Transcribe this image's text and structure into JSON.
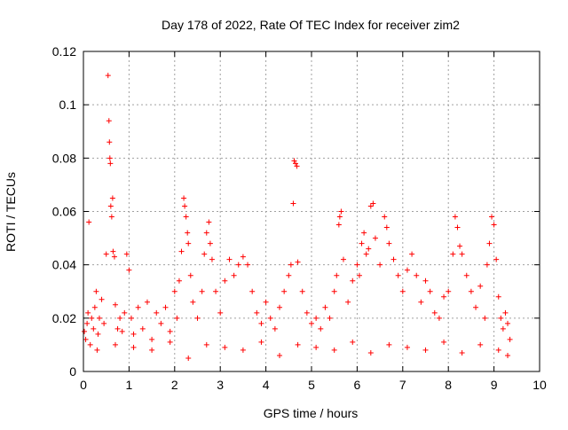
{
  "chart_data": {
    "type": "scatter",
    "title": "Day 178 of 2022, Rate Of TEC Index for receiver zim2",
    "xlabel": "GPS time / hours",
    "ylabel": "ROTI / TECUs",
    "xlim": [
      0,
      10
    ],
    "ylim": [
      0,
      0.12
    ],
    "x_ticks": [
      "0",
      "1",
      "2",
      "3",
      "4",
      "5",
      "6",
      "7",
      "8",
      "9",
      "10"
    ],
    "y_ticks": [
      "0",
      "0.02",
      "0.04",
      "0.06",
      "0.08",
      "0.1",
      "0.12"
    ],
    "grid": true,
    "legend": "none",
    "marker": "plus",
    "series": [
      {
        "color": "#ff0000",
        "points": [
          [
            0.02,
            0.015
          ],
          [
            0.05,
            0.012
          ],
          [
            0.08,
            0.018
          ],
          [
            0.1,
            0.022
          ],
          [
            0.12,
            0.056
          ],
          [
            0.15,
            0.01
          ],
          [
            0.18,
            0.02
          ],
          [
            0.22,
            0.016
          ],
          [
            0.25,
            0.024
          ],
          [
            0.28,
            0.03
          ],
          [
            0.32,
            0.014
          ],
          [
            0.35,
            0.02
          ],
          [
            0.4,
            0.027
          ],
          [
            0.45,
            0.018
          ],
          [
            0.5,
            0.044
          ],
          [
            0.54,
            0.111
          ],
          [
            0.56,
            0.094
          ],
          [
            0.57,
            0.086
          ],
          [
            0.58,
            0.08
          ],
          [
            0.59,
            0.078
          ],
          [
            0.6,
            0.062
          ],
          [
            0.62,
            0.058
          ],
          [
            0.64,
            0.065
          ],
          [
            0.65,
            0.045
          ],
          [
            0.68,
            0.043
          ],
          [
            0.7,
            0.025
          ],
          [
            0.75,
            0.016
          ],
          [
            0.8,
            0.02
          ],
          [
            0.85,
            0.015
          ],
          [
            0.9,
            0.022
          ],
          [
            0.95,
            0.044
          ],
          [
            1.0,
            0.038
          ],
          [
            1.05,
            0.02
          ],
          [
            1.1,
            0.014
          ],
          [
            1.2,
            0.024
          ],
          [
            1.3,
            0.016
          ],
          [
            1.4,
            0.026
          ],
          [
            1.5,
            0.012
          ],
          [
            1.6,
            0.022
          ],
          [
            1.7,
            0.018
          ],
          [
            1.8,
            0.024
          ],
          [
            1.9,
            0.015
          ],
          [
            2.0,
            0.03
          ],
          [
            2.05,
            0.02
          ],
          [
            2.1,
            0.034
          ],
          [
            2.15,
            0.045
          ],
          [
            2.2,
            0.065
          ],
          [
            2.22,
            0.062
          ],
          [
            2.25,
            0.058
          ],
          [
            2.28,
            0.052
          ],
          [
            2.3,
            0.048
          ],
          [
            2.35,
            0.036
          ],
          [
            2.4,
            0.026
          ],
          [
            2.5,
            0.02
          ],
          [
            2.6,
            0.03
          ],
          [
            2.65,
            0.044
          ],
          [
            2.7,
            0.052
          ],
          [
            2.75,
            0.056
          ],
          [
            2.78,
            0.048
          ],
          [
            2.82,
            0.042
          ],
          [
            2.9,
            0.03
          ],
          [
            3.0,
            0.022
          ],
          [
            3.1,
            0.034
          ],
          [
            3.2,
            0.042
          ],
          [
            3.3,
            0.036
          ],
          [
            3.4,
            0.04
          ],
          [
            3.5,
            0.043
          ],
          [
            3.6,
            0.04
          ],
          [
            3.7,
            0.03
          ],
          [
            3.8,
            0.022
          ],
          [
            3.9,
            0.018
          ],
          [
            4.0,
            0.026
          ],
          [
            4.1,
            0.02
          ],
          [
            4.2,
            0.016
          ],
          [
            4.3,
            0.024
          ],
          [
            4.4,
            0.03
          ],
          [
            4.5,
            0.036
          ],
          [
            4.55,
            0.04
          ],
          [
            4.6,
            0.063
          ],
          [
            4.62,
            0.079
          ],
          [
            4.65,
            0.078
          ],
          [
            4.68,
            0.077
          ],
          [
            4.7,
            0.041
          ],
          [
            4.8,
            0.03
          ],
          [
            4.9,
            0.022
          ],
          [
            5.0,
            0.018
          ],
          [
            5.1,
            0.02
          ],
          [
            5.2,
            0.016
          ],
          [
            5.3,
            0.024
          ],
          [
            5.4,
            0.02
          ],
          [
            5.5,
            0.03
          ],
          [
            5.55,
            0.036
          ],
          [
            5.6,
            0.055
          ],
          [
            5.62,
            0.058
          ],
          [
            5.65,
            0.06
          ],
          [
            5.7,
            0.042
          ],
          [
            5.8,
            0.026
          ],
          [
            5.9,
            0.034
          ],
          [
            6.0,
            0.04
          ],
          [
            6.05,
            0.036
          ],
          [
            6.1,
            0.048
          ],
          [
            6.15,
            0.052
          ],
          [
            6.2,
            0.044
          ],
          [
            6.25,
            0.046
          ],
          [
            6.3,
            0.062
          ],
          [
            6.35,
            0.063
          ],
          [
            6.4,
            0.05
          ],
          [
            6.5,
            0.04
          ],
          [
            6.6,
            0.058
          ],
          [
            6.65,
            0.054
          ],
          [
            6.7,
            0.048
          ],
          [
            6.8,
            0.042
          ],
          [
            6.9,
            0.036
          ],
          [
            7.0,
            0.03
          ],
          [
            7.1,
            0.038
          ],
          [
            7.2,
            0.044
          ],
          [
            7.3,
            0.036
          ],
          [
            7.4,
            0.026
          ],
          [
            7.5,
            0.034
          ],
          [
            7.6,
            0.03
          ],
          [
            7.7,
            0.022
          ],
          [
            7.8,
            0.02
          ],
          [
            7.9,
            0.028
          ],
          [
            8.0,
            0.03
          ],
          [
            8.1,
            0.044
          ],
          [
            8.15,
            0.058
          ],
          [
            8.2,
            0.054
          ],
          [
            8.25,
            0.047
          ],
          [
            8.3,
            0.044
          ],
          [
            8.4,
            0.036
          ],
          [
            8.5,
            0.03
          ],
          [
            8.6,
            0.024
          ],
          [
            8.7,
            0.032
          ],
          [
            8.8,
            0.02
          ],
          [
            8.85,
            0.04
          ],
          [
            8.9,
            0.048
          ],
          [
            8.95,
            0.058
          ],
          [
            9.0,
            0.055
          ],
          [
            9.05,
            0.042
          ],
          [
            9.1,
            0.028
          ],
          [
            9.15,
            0.02
          ],
          [
            9.2,
            0.016
          ],
          [
            9.25,
            0.022
          ],
          [
            9.3,
            0.018
          ],
          [
            9.35,
            0.012
          ],
          [
            0.3,
            0.008
          ],
          [
            0.7,
            0.01
          ],
          [
            1.1,
            0.009
          ],
          [
            1.5,
            0.008
          ],
          [
            1.9,
            0.011
          ],
          [
            2.3,
            0.005
          ],
          [
            2.7,
            0.01
          ],
          [
            3.1,
            0.009
          ],
          [
            3.5,
            0.008
          ],
          [
            3.9,
            0.011
          ],
          [
            4.3,
            0.006
          ],
          [
            4.7,
            0.01
          ],
          [
            5.1,
            0.009
          ],
          [
            5.5,
            0.008
          ],
          [
            5.9,
            0.011
          ],
          [
            6.3,
            0.007
          ],
          [
            6.7,
            0.01
          ],
          [
            7.1,
            0.009
          ],
          [
            7.5,
            0.008
          ],
          [
            7.9,
            0.011
          ],
          [
            8.3,
            0.007
          ],
          [
            8.7,
            0.01
          ],
          [
            9.1,
            0.008
          ],
          [
            9.3,
            0.006
          ]
        ]
      }
    ]
  }
}
